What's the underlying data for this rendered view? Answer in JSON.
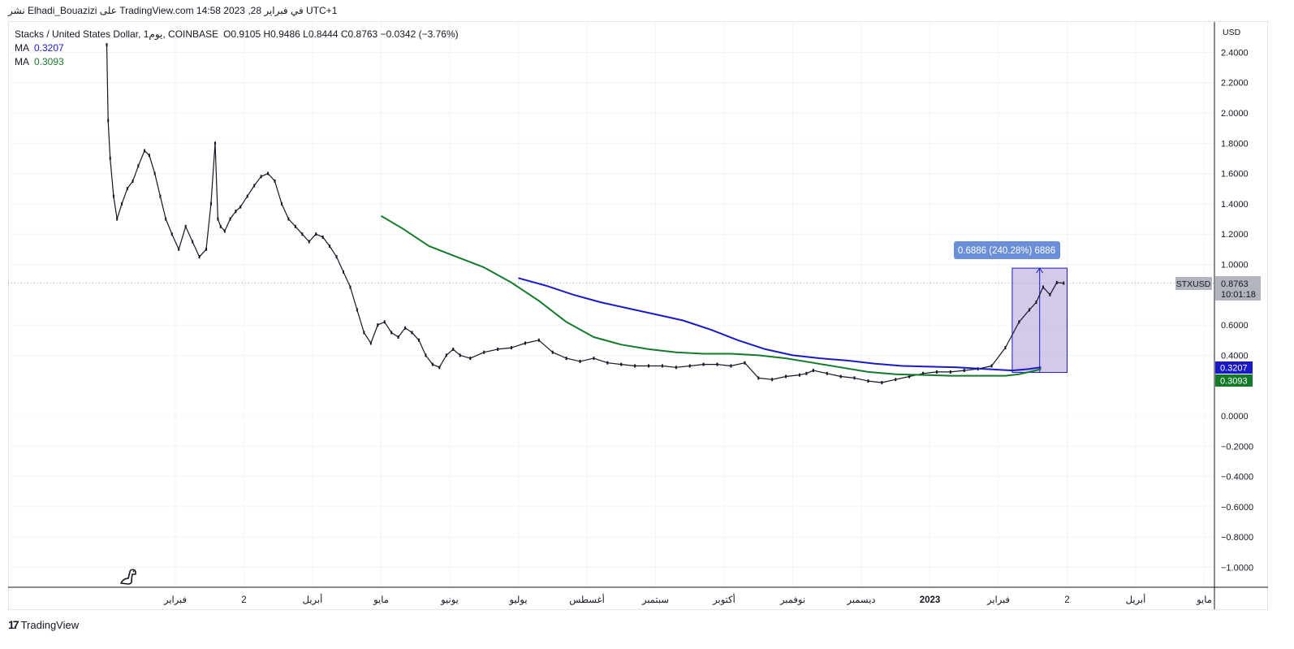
{
  "header": {
    "caption": "نشر Elhadi_Bouazizi على TradingView.com 14:58 2023 ,28 في فبراير UTC+1"
  },
  "legend": {
    "symbol_line": "Stacks / United States Dollar, 1يوم, COINBASE",
    "ohlc": "O0.9105 H0.9486 L0.8444 C0.8763 −0.0342 (−3.76%)",
    "ma1_label": "MA",
    "ma1_value": "0.3207",
    "ma2_label": "MA",
    "ma2_value": "0.3093"
  },
  "footer": {
    "brand": "TradingView",
    "logo_glyph": "17"
  },
  "colors": {
    "price": "#131722",
    "ma_fast": "#1919c8",
    "ma_slow": "#137a2a",
    "measure_fill": "#b39ddb",
    "measure_label_bg": "#6a8fd8",
    "grid": "#f0f3fa",
    "symbol_tag_bg": "#b2b5be"
  },
  "chart_data": {
    "type": "line",
    "currency": "USD",
    "y_ticks": [
      "2.4000",
      "2.2000",
      "2.0000",
      "1.8000",
      "1.6000",
      "1.4000",
      "1.2000",
      "1.0000",
      "0.6000",
      "0.4000",
      "0.0000",
      "−0.2000",
      "−0.4000",
      "−0.6000",
      "−0.8000",
      "−1.0000"
    ],
    "y_tick_values": [
      2.4,
      2.2,
      2.0,
      1.8,
      1.6,
      1.4,
      1.2,
      1.0,
      0.6,
      0.4,
      0.0,
      -0.2,
      -0.4,
      -0.6,
      -0.8,
      -1.0
    ],
    "ylim": [
      -1.1,
      2.55
    ],
    "x_ticks": [
      "فبراير",
      "2",
      "أبريل",
      "مايو",
      "يونيو",
      "يوليو",
      "أغسطس",
      "سبتمبر",
      "أكتوبر",
      "نوفمبر",
      "ديسمبر",
      "2023",
      "فبراير",
      "2",
      "أبريل",
      "مايو"
    ],
    "x_tick_bold": [
      false,
      false,
      false,
      false,
      false,
      false,
      false,
      false,
      false,
      false,
      false,
      true,
      false,
      false,
      false,
      false
    ],
    "x_tick_pos": [
      1,
      2,
      3,
      4,
      5,
      6,
      7,
      8,
      9,
      10,
      11,
      12,
      13,
      14,
      15,
      16
    ],
    "xlim": [
      -0.2,
      17.0
    ],
    "series": [
      {
        "name": "STXUSD",
        "role": "price",
        "x": [
          0.0,
          0.02,
          0.05,
          0.1,
          0.15,
          0.22,
          0.3,
          0.38,
          0.46,
          0.55,
          0.62,
          0.7,
          0.78,
          0.86,
          0.95,
          1.05,
          1.15,
          1.25,
          1.35,
          1.45,
          1.52,
          1.58,
          1.62,
          1.66,
          1.72,
          1.8,
          1.88,
          1.95,
          2.05,
          2.15,
          2.25,
          2.35,
          2.45,
          2.55,
          2.65,
          2.75,
          2.85,
          2.95,
          3.05,
          3.15,
          3.25,
          3.35,
          3.45,
          3.55,
          3.65,
          3.75,
          3.85,
          3.95,
          4.05,
          4.15,
          4.25,
          4.35,
          4.45,
          4.55,
          4.65,
          4.75,
          4.85,
          4.95,
          5.05,
          5.15,
          5.3,
          5.5,
          5.7,
          5.9,
          6.1,
          6.3,
          6.5,
          6.7,
          6.9,
          7.1,
          7.3,
          7.5,
          7.7,
          7.9,
          8.1,
          8.3,
          8.5,
          8.7,
          8.9,
          9.1,
          9.3,
          9.5,
          9.7,
          9.9,
          10.1,
          10.2,
          10.3,
          10.5,
          10.7,
          10.9,
          11.1,
          11.3,
          11.5,
          11.7,
          11.9,
          12.1,
          12.3,
          12.5,
          12.7,
          12.9,
          13.1,
          13.3,
          13.45,
          13.55,
          13.65,
          13.75,
          13.85,
          13.95
        ],
        "values": [
          2.45,
          1.95,
          1.7,
          1.45,
          1.3,
          1.4,
          1.5,
          1.55,
          1.65,
          1.75,
          1.72,
          1.6,
          1.45,
          1.3,
          1.2,
          1.1,
          1.25,
          1.15,
          1.05,
          1.1,
          1.4,
          1.8,
          1.3,
          1.25,
          1.22,
          1.3,
          1.35,
          1.38,
          1.45,
          1.52,
          1.58,
          1.6,
          1.55,
          1.4,
          1.3,
          1.25,
          1.2,
          1.15,
          1.2,
          1.18,
          1.12,
          1.05,
          0.95,
          0.85,
          0.7,
          0.55,
          0.48,
          0.6,
          0.62,
          0.55,
          0.52,
          0.58,
          0.55,
          0.5,
          0.4,
          0.34,
          0.32,
          0.4,
          0.44,
          0.4,
          0.38,
          0.42,
          0.44,
          0.45,
          0.48,
          0.5,
          0.42,
          0.38,
          0.36,
          0.38,
          0.35,
          0.34,
          0.33,
          0.33,
          0.33,
          0.32,
          0.33,
          0.34,
          0.34,
          0.33,
          0.35,
          0.25,
          0.24,
          0.26,
          0.27,
          0.28,
          0.3,
          0.28,
          0.26,
          0.25,
          0.23,
          0.22,
          0.24,
          0.26,
          0.28,
          0.29,
          0.29,
          0.3,
          0.31,
          0.33,
          0.45,
          0.62,
          0.7,
          0.75,
          0.85,
          0.8,
          0.88,
          0.8763
        ]
      },
      {
        "name": "MA",
        "role": "ma_slow",
        "x": [
          4.0,
          4.3,
          4.7,
          5.1,
          5.5,
          5.9,
          6.3,
          6.7,
          7.1,
          7.5,
          7.9,
          8.3,
          8.7,
          9.1,
          9.5,
          9.9,
          10.3,
          10.7,
          11.1,
          11.5,
          11.9,
          12.3,
          12.7,
          13.1,
          13.3,
          13.5,
          13.62
        ],
        "values": [
          1.32,
          1.24,
          1.12,
          1.05,
          0.98,
          0.88,
          0.76,
          0.62,
          0.52,
          0.47,
          0.44,
          0.42,
          0.41,
          0.41,
          0.4,
          0.38,
          0.35,
          0.32,
          0.29,
          0.275,
          0.27,
          0.265,
          0.265,
          0.265,
          0.275,
          0.295,
          0.3093
        ]
      },
      {
        "name": "MA",
        "role": "ma_fast",
        "x": [
          6.0,
          6.4,
          6.8,
          7.2,
          7.6,
          8.0,
          8.4,
          8.8,
          9.2,
          9.6,
          10.0,
          10.4,
          10.8,
          11.2,
          11.6,
          12.0,
          12.4,
          12.8,
          13.2,
          13.45,
          13.62
        ],
        "values": [
          0.91,
          0.86,
          0.8,
          0.75,
          0.71,
          0.67,
          0.63,
          0.57,
          0.5,
          0.44,
          0.4,
          0.38,
          0.365,
          0.345,
          0.33,
          0.325,
          0.32,
          0.31,
          0.3,
          0.31,
          0.3207
        ]
      }
    ],
    "measure": {
      "x_start": 13.2,
      "x_end": 14.0,
      "y_low": 0.2866,
      "y_high": 0.9752,
      "label": "0.6886 (240.28%) 6886"
    },
    "last_price": {
      "symbol": "STXUSD",
      "price": "0.8763",
      "countdown": "10:01:18",
      "value": 0.8763
    },
    "ma_tags": [
      {
        "value": 0.3207,
        "text": "0.3207",
        "role": "ma_fast"
      },
      {
        "value": 0.3093,
        "text": "0.3093",
        "role": "ma_slow"
      }
    ]
  }
}
